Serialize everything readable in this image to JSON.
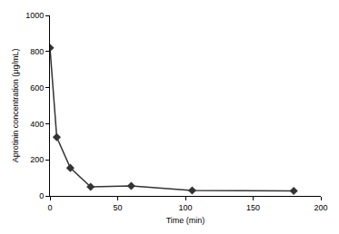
{
  "chart_data": {
    "type": "line",
    "x_label": "Time (min)",
    "y_label": "Aprotinin concentration (μg/mL)",
    "x": [
      0,
      5,
      15,
      30,
      60,
      105,
      180
    ],
    "values": [
      820,
      325,
      155,
      50,
      55,
      30,
      28
    ],
    "color": "#333333",
    "marker": "diamond",
    "xlim": [
      0,
      200
    ],
    "xticks": [
      0,
      50,
      100,
      150,
      200
    ],
    "ylim": [
      0,
      1000
    ],
    "yticks": [
      0,
      200,
      400,
      600,
      800,
      1000
    ],
    "grid": false
  }
}
